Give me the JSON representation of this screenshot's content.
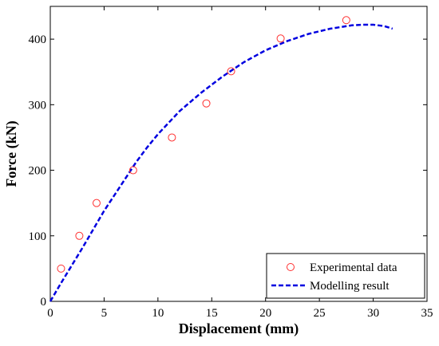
{
  "chart_data": {
    "type": "scatter",
    "title": "",
    "xlabel": "Displacement (mm)",
    "ylabel": "Force (kN)",
    "xlim": [
      0,
      35
    ],
    "ylim": [
      0,
      450
    ],
    "xticks": [
      0,
      5,
      10,
      15,
      20,
      25,
      30,
      35
    ],
    "yticks": [
      0,
      100,
      200,
      300,
      400
    ],
    "grid": false,
    "legend_position": "bottom-right",
    "series": [
      {
        "name": "Experimental data",
        "style": "markers",
        "marker": "open-circle",
        "color": "#ff3030",
        "x": [
          1.0,
          2.7,
          4.3,
          7.7,
          11.3,
          14.5,
          16.8,
          21.4,
          27.5
        ],
        "y": [
          50,
          100,
          150,
          200,
          250,
          302,
          351,
          401,
          429
        ]
      },
      {
        "name": "Modelling result",
        "style": "dashed-line",
        "color": "#0000e0",
        "x": [
          0,
          1,
          2,
          3,
          4,
          5,
          6,
          7,
          8,
          9,
          10,
          12,
          14,
          16,
          18,
          20,
          22,
          24,
          26,
          28,
          29,
          30,
          31,
          31.8
        ],
        "y": [
          0,
          28,
          55,
          82,
          110,
          138,
          163,
          188,
          213,
          235,
          255,
          290,
          318,
          343,
          365,
          383,
          397,
          408,
          416,
          421,
          422,
          422,
          420,
          416
        ]
      }
    ]
  }
}
